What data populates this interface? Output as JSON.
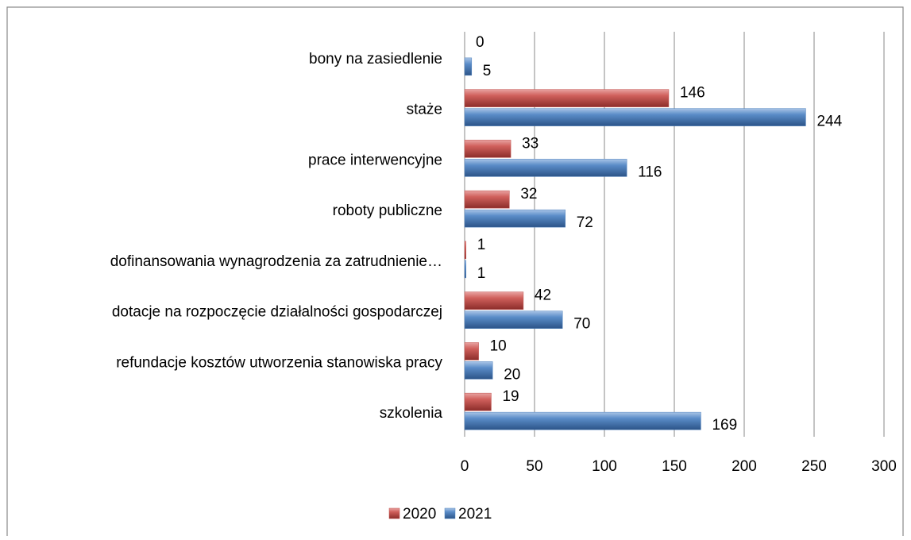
{
  "chart_data": {
    "type": "bar",
    "orientation": "horizontal",
    "categories": [
      "bony na zasiedlenie",
      "staże",
      "prace interwencyjne",
      "roboty publiczne",
      "dofinansowania wynagrodzenia za zatrudnienie…",
      "dotacje na rozpoczęcie działalności gospodarczej",
      "refundacje kosztów utworzenia stanowiska pracy",
      "szkolenia"
    ],
    "series": [
      {
        "name": "2020",
        "color": "#c0504d",
        "values": [
          0,
          146,
          33,
          32,
          1,
          42,
          10,
          19
        ]
      },
      {
        "name": "2021",
        "color": "#4f81bd",
        "values": [
          5,
          244,
          116,
          72,
          1,
          70,
          20,
          169
        ]
      }
    ],
    "xlim": [
      0,
      300
    ],
    "xticks": [
      0,
      50,
      100,
      150,
      200,
      250,
      300
    ],
    "grid": true,
    "legend": "bottom"
  }
}
